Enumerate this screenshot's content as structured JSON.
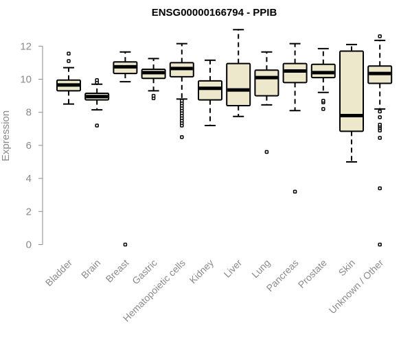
{
  "chart_data": {
    "type": "box",
    "title": "ENSG00000166794 - PPIB",
    "xlabel": "",
    "ylabel": "Expression",
    "ylim": [
      0,
      13
    ],
    "yticks": [
      0,
      2,
      4,
      6,
      8,
      10,
      12
    ],
    "grid": false,
    "box_color": "#ede7cc",
    "categories": [
      "Bladder",
      "Brain",
      "Breast",
      "Gastric",
      "Hematopoietic cells",
      "Kidney",
      "Liver",
      "Lung",
      "Pancreas",
      "Prostate",
      "Skin",
      "Unknown / Other"
    ],
    "boxes": [
      {
        "whisker_low": 8.5,
        "q1": 9.3,
        "median": 9.65,
        "q3": 9.95,
        "whisker_high": 10.7,
        "outliers": [
          11.1,
          11.55
        ]
      },
      {
        "whisker_low": 8.15,
        "q1": 8.75,
        "median": 8.95,
        "q3": 9.15,
        "whisker_high": 9.7,
        "outliers": [
          7.2,
          9.8,
          9.95
        ]
      },
      {
        "whisker_low": 9.85,
        "q1": 10.35,
        "median": 10.75,
        "q3": 11.05,
        "whisker_high": 11.65,
        "outliers": [
          0.0
        ]
      },
      {
        "whisker_low": 9.3,
        "q1": 10.05,
        "median": 10.4,
        "q3": 10.6,
        "whisker_high": 11.25,
        "outliers": [
          8.85,
          9.0
        ]
      },
      {
        "whisker_low": 8.8,
        "q1": 10.15,
        "median": 10.65,
        "q3": 11.0,
        "whisker_high": 12.15,
        "outliers": [
          6.5,
          7.2,
          7.35,
          7.5,
          7.65,
          7.8,
          7.95,
          8.1,
          8.25,
          8.4,
          8.55,
          8.7
        ]
      },
      {
        "whisker_low": 7.2,
        "q1": 8.75,
        "median": 9.45,
        "q3": 9.9,
        "whisker_high": 11.15,
        "outliers": []
      },
      {
        "whisker_low": 7.75,
        "q1": 8.4,
        "median": 9.35,
        "q3": 10.95,
        "whisker_high": 13.0,
        "outliers": []
      },
      {
        "whisker_low": 8.45,
        "q1": 9.0,
        "median": 10.1,
        "q3": 10.55,
        "whisker_high": 11.65,
        "outliers": [
          5.6
        ]
      },
      {
        "whisker_low": 8.1,
        "q1": 9.8,
        "median": 10.5,
        "q3": 10.95,
        "whisker_high": 12.15,
        "outliers": [
          3.2
        ]
      },
      {
        "whisker_low": 9.2,
        "q1": 10.1,
        "median": 10.4,
        "q3": 10.9,
        "whisker_high": 11.85,
        "outliers": [
          8.2,
          8.6,
          8.7
        ]
      },
      {
        "whisker_low": 5.0,
        "q1": 6.85,
        "median": 7.8,
        "q3": 11.7,
        "whisker_high": 12.1,
        "outliers": []
      },
      {
        "whisker_low": 8.2,
        "q1": 9.75,
        "median": 10.35,
        "q3": 10.8,
        "whisker_high": 12.35,
        "outliers": [
          0.0,
          3.4,
          6.45,
          6.9,
          7.05,
          7.15,
          7.25,
          7.7,
          8.05,
          12.6
        ]
      }
    ]
  }
}
